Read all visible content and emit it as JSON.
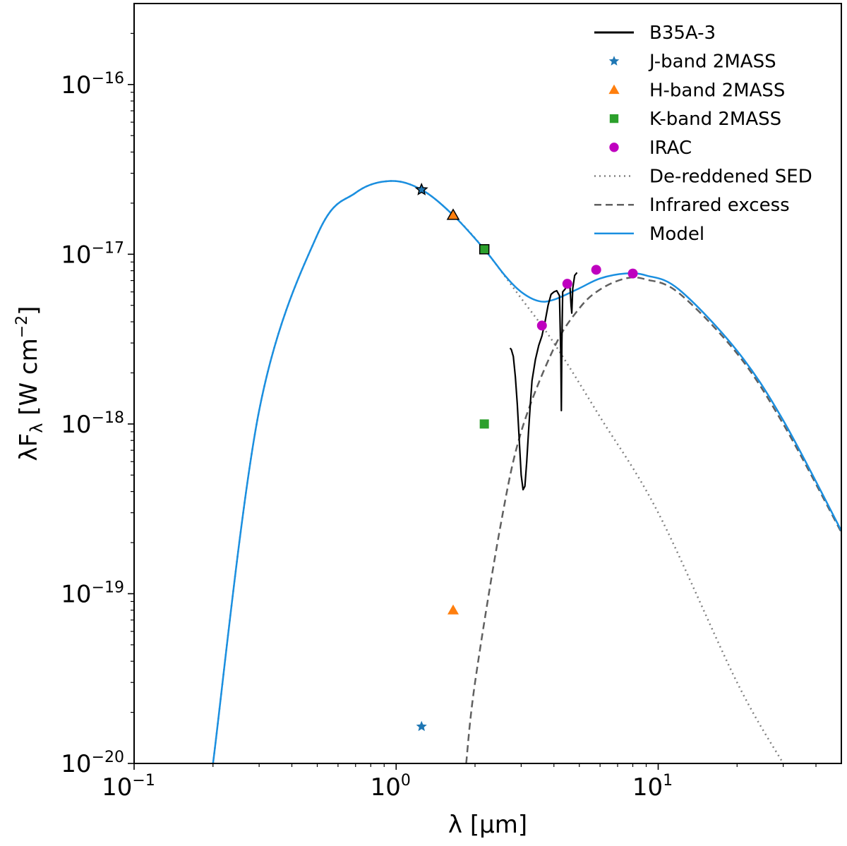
{
  "chart_data": {
    "type": "line",
    "title": "",
    "xlabel": "λ [μm]",
    "ylabel": "λF_λ [W cm^-2]",
    "x_scale": "log",
    "y_scale": "log",
    "xlim": [
      0.1,
      50
    ],
    "ylim": [
      1e-20,
      3e-16
    ],
    "grid": false,
    "legend_position": "top-right",
    "x_ticks": [
      {
        "base": "10",
        "exp": "−1",
        "value": 0.1
      },
      {
        "base": "10",
        "exp": "0",
        "value": 1
      },
      {
        "base": "10",
        "exp": "1",
        "value": 10
      }
    ],
    "y_ticks": [
      {
        "base": "10",
        "exp": "−20",
        "value": 1e-20
      },
      {
        "base": "10",
        "exp": "−19",
        "value": 1e-19
      },
      {
        "base": "10",
        "exp": "−18",
        "value": 1e-18
      },
      {
        "base": "10",
        "exp": "−17",
        "value": 1e-17
      },
      {
        "base": "10",
        "exp": "−16",
        "value": 1e-16
      }
    ],
    "series": [
      {
        "name": "B35A-3",
        "kind": "line",
        "color": "#000000",
        "points": [
          [
            2.72,
            2.8e-18
          ],
          [
            2.75,
            2.75e-18
          ],
          [
            2.8,
            2.5e-18
          ],
          [
            2.85,
            1.9e-18
          ],
          [
            2.9,
            1.3e-18
          ],
          [
            2.95,
            8e-19
          ],
          [
            3.0,
            5e-19
          ],
          [
            3.05,
            4.1e-19
          ],
          [
            3.1,
            4.3e-19
          ],
          [
            3.15,
            6e-19
          ],
          [
            3.2,
            9e-19
          ],
          [
            3.25,
            1.3e-18
          ],
          [
            3.3,
            1.8e-18
          ],
          [
            3.4,
            2.4e-18
          ],
          [
            3.5,
            2.9e-18
          ],
          [
            3.6,
            3.3e-18
          ],
          [
            3.7,
            4e-18
          ],
          [
            3.8,
            5e-18
          ],
          [
            3.9,
            5.8e-18
          ],
          [
            4.0,
            6e-18
          ],
          [
            4.1,
            6.1e-18
          ],
          [
            4.2,
            5.7e-18
          ],
          [
            4.25,
            2.5e-18
          ],
          [
            4.27,
            1.2e-18
          ],
          [
            4.29,
            3e-18
          ],
          [
            4.32,
            6e-18
          ],
          [
            4.4,
            6.2e-18
          ],
          [
            4.5,
            6.5e-18
          ],
          [
            4.6,
            6.7e-18
          ],
          [
            4.65,
            5e-18
          ],
          [
            4.68,
            4.5e-18
          ],
          [
            4.72,
            6.3e-18
          ],
          [
            4.8,
            7.5e-18
          ],
          [
            4.9,
            7.8e-18
          ]
        ]
      },
      {
        "name": "J-band 2MASS",
        "kind": "marker",
        "marker": "star",
        "color": "#1f77b4",
        "points": [
          [
            1.25,
            2.4e-17
          ],
          [
            1.25,
            1.65e-20
          ]
        ],
        "dereddened_indices": [
          0
        ]
      },
      {
        "name": "H-band 2MASS",
        "kind": "marker",
        "marker": "triangle",
        "color": "#ff7f0e",
        "points": [
          [
            1.65,
            1.7e-17
          ],
          [
            1.65,
            8e-20
          ]
        ],
        "dereddened_indices": [
          0
        ]
      },
      {
        "name": "K-band 2MASS",
        "kind": "marker",
        "marker": "square",
        "color": "#2ca02c",
        "points": [
          [
            2.17,
            1.07e-17
          ],
          [
            2.17,
            1e-18
          ]
        ],
        "dereddened_indices": [
          0
        ]
      },
      {
        "name": "IRAC",
        "kind": "marker",
        "marker": "circle",
        "color": "#bf00bf",
        "points": [
          [
            3.6,
            3.8e-18
          ],
          [
            4.5,
            6.7e-18
          ],
          [
            5.8,
            8.1e-18
          ],
          [
            8.0,
            7.7e-18
          ]
        ]
      },
      {
        "name": "De-reddened SED",
        "kind": "line",
        "dash": "dotted",
        "color": "#808080",
        "points": [
          [
            0.2,
            1e-20
          ],
          [
            0.3,
            1.2e-18
          ],
          [
            0.5,
            1.3e-17
          ],
          [
            0.7,
            2.3e-17
          ],
          [
            0.95,
            2.7e-17
          ],
          [
            1.25,
            2.4e-17
          ],
          [
            1.65,
            1.7e-17
          ],
          [
            2.17,
            1.07e-17
          ],
          [
            3.0,
            5.5e-18
          ],
          [
            4.0,
            3e-18
          ],
          [
            6.0,
            1.1e-18
          ],
          [
            10.0,
            3e-19
          ],
          [
            20.0,
            3e-20
          ],
          [
            30.0,
            1e-20
          ]
        ]
      },
      {
        "name": "Infrared excess",
        "kind": "line",
        "dash": "dashed",
        "color": "#606060",
        "points": [
          [
            1.85,
            1e-20
          ],
          [
            2.0,
            3e-20
          ],
          [
            2.5,
            2.5e-19
          ],
          [
            3.0,
            9e-19
          ],
          [
            4.0,
            2.8e-18
          ],
          [
            5.0,
            4.8e-18
          ],
          [
            6.0,
            6.2e-18
          ],
          [
            7.5,
            7.2e-18
          ],
          [
            9.0,
            7.1e-18
          ],
          [
            12.0,
            5.9e-18
          ],
          [
            20.0,
            2.6e-18
          ],
          [
            30.0,
            1e-18
          ],
          [
            50.0,
            2.3e-19
          ]
        ]
      },
      {
        "name": "Model",
        "kind": "line",
        "color": "#1a8fe0",
        "points": [
          [
            0.2,
            1e-20
          ],
          [
            0.3,
            1.2e-18
          ],
          [
            0.5,
            1.3e-17
          ],
          [
            0.7,
            2.3e-17
          ],
          [
            0.95,
            2.7e-17
          ],
          [
            1.25,
            2.4e-17
          ],
          [
            1.65,
            1.7e-17
          ],
          [
            2.17,
            1.07e-17
          ],
          [
            2.6,
            7.5e-18
          ],
          [
            3.0,
            6e-18
          ],
          [
            3.5,
            5.3e-18
          ],
          [
            4.0,
            5.4e-18
          ],
          [
            5.0,
            6.3e-18
          ],
          [
            6.0,
            7.2e-18
          ],
          [
            7.5,
            7.7e-18
          ],
          [
            9.0,
            7.5e-18
          ],
          [
            12.0,
            6.2e-18
          ],
          [
            20.0,
            2.7e-18
          ],
          [
            30.0,
            1.05e-18
          ],
          [
            50.0,
            2.35e-19
          ]
        ]
      }
    ]
  }
}
